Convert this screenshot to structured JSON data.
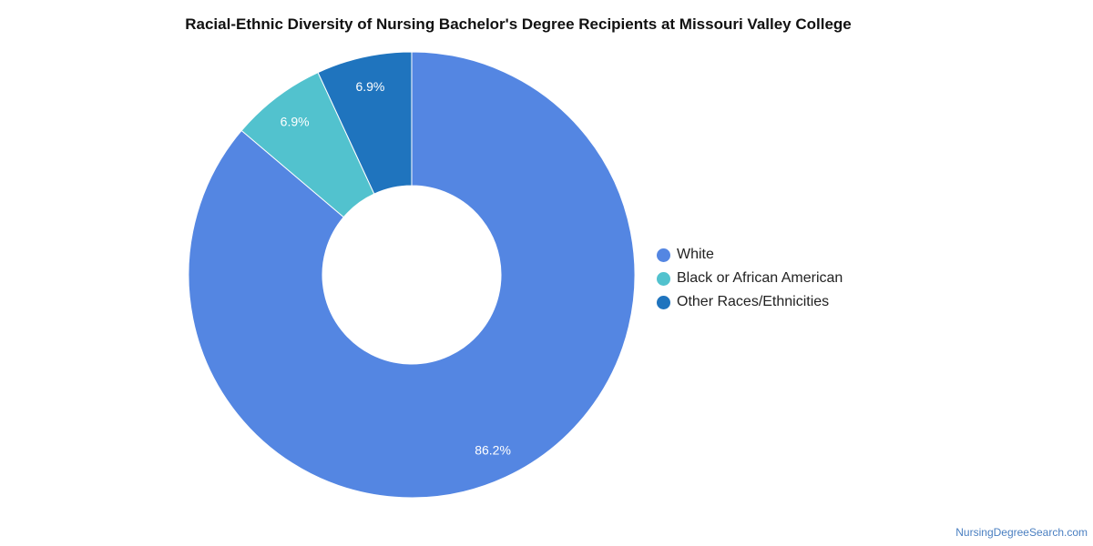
{
  "chart_data": {
    "type": "pie",
    "title": "Racial-Ethnic Diversity of Nursing Bachelor's Degree Recipients at Missouri Valley College",
    "donut": true,
    "slices": [
      {
        "label": "White",
        "value": 86.2,
        "display": "86.2%",
        "color": "#5486e2"
      },
      {
        "label": "Black or African American",
        "value": 6.9,
        "display": "6.9%",
        "color": "#52c2ce"
      },
      {
        "label": "Other Races/Ethnicities",
        "value": 6.9,
        "display": "6.9%",
        "color": "#1f74be"
      }
    ],
    "legend_position": "right"
  },
  "source": "NursingDegreeSearch.com"
}
